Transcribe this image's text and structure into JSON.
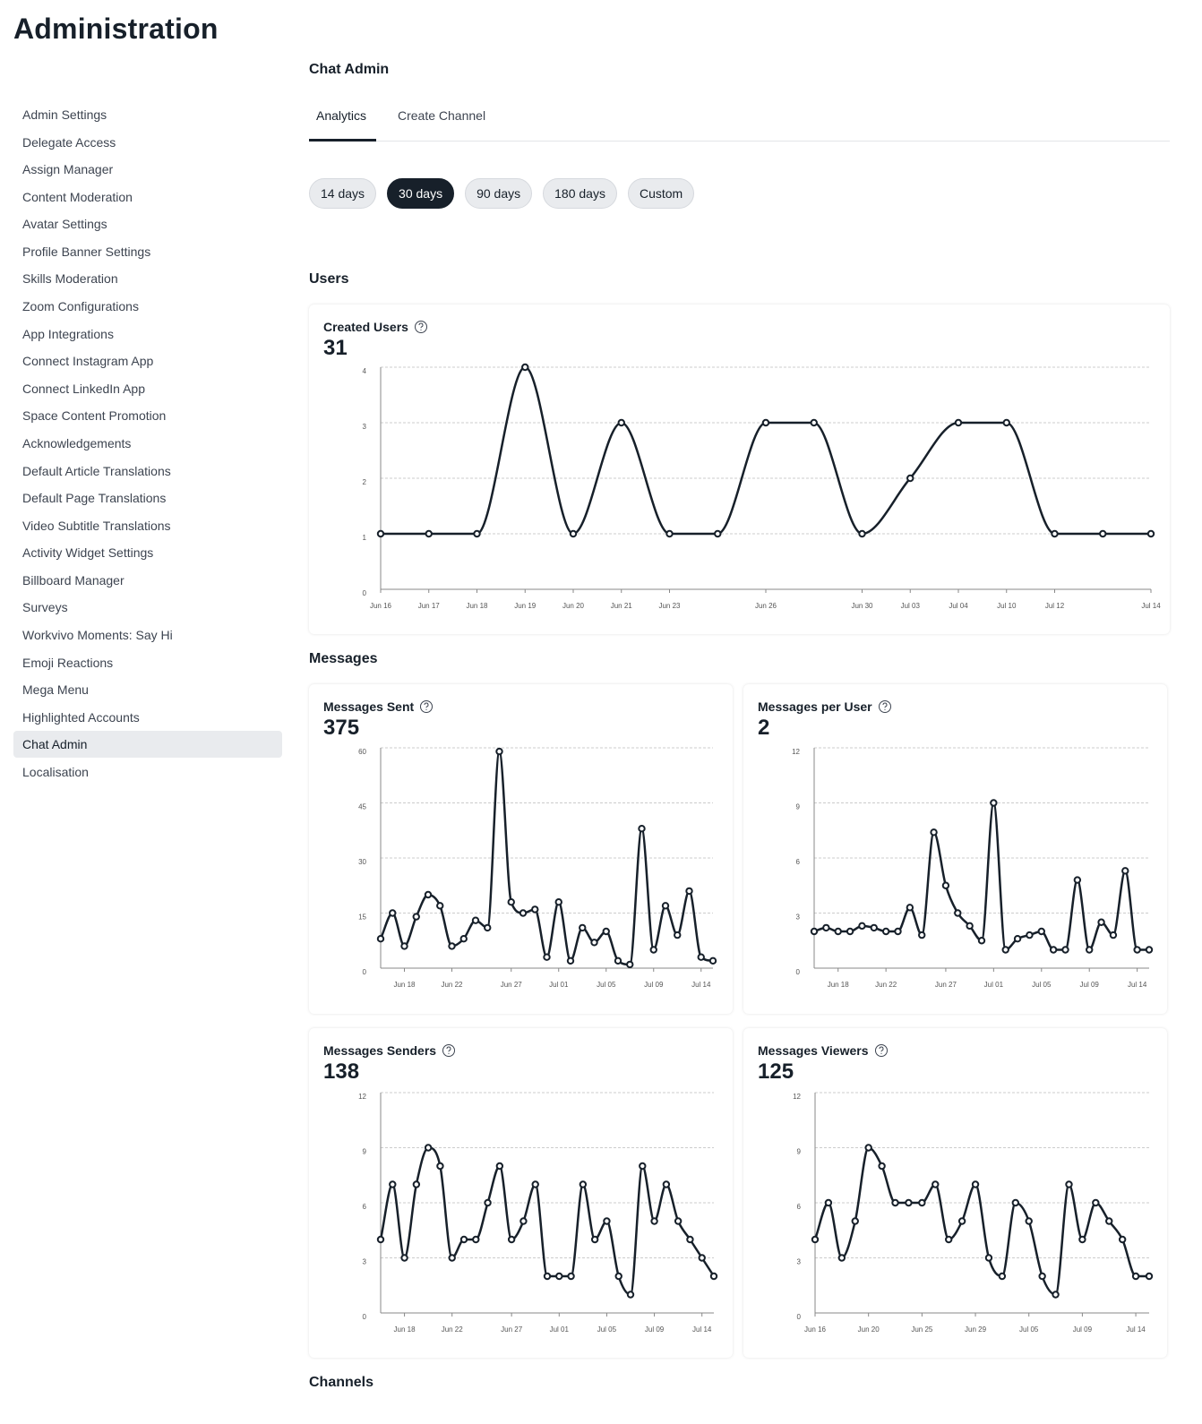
{
  "header": {
    "title": "Administration"
  },
  "sidebar": {
    "items": [
      "Admin Settings",
      "Delegate Access",
      "Assign Manager",
      "Content Moderation",
      "Avatar Settings",
      "Profile Banner Settings",
      "Skills Moderation",
      "Zoom Configurations",
      "App Integrations",
      "Connect Instagram App",
      "Connect LinkedIn App",
      "Space Content Promotion",
      "Acknowledgements",
      "Default Article Translations",
      "Default Page Translations",
      "Video Subtitle Translations",
      "Activity Widget Settings",
      "Billboard Manager",
      "Surveys",
      "Workvivo Moments: Say Hi",
      "Emoji Reactions",
      "Mega Menu",
      "Highlighted Accounts",
      "Chat Admin",
      "Localisation"
    ],
    "active": 23
  },
  "page": {
    "title": "Chat Admin",
    "tabs": [
      "Analytics",
      "Create Channel"
    ],
    "active_tab": 0,
    "ranges": [
      "14 days",
      "30 days",
      "90 days",
      "180 days",
      "Custom"
    ],
    "active_range": 1
  },
  "sections": {
    "users": "Users",
    "messages": "Messages",
    "channels": "Channels"
  },
  "chart_data": [
    {
      "type": "line",
      "title": "Created Users",
      "total": 31,
      "color": "#17202a",
      "grid": true,
      "categories": [
        "Jun 16",
        "Jun 17",
        "Jun 18",
        "Jun 19",
        "Jun 20",
        "Jun 21",
        "Jun 23",
        null,
        "Jun 26",
        null,
        "Jun 30",
        "Jul 03",
        "Jul 04",
        "Jul 10",
        "Jul 12",
        null,
        "Jul 14"
      ],
      "values": [
        1,
        1,
        1,
        4,
        1,
        3,
        1,
        1,
        3,
        3,
        1,
        2,
        3,
        3,
        1,
        1,
        1
      ],
      "ylim": [
        0,
        4
      ],
      "yticks": [
        0,
        1,
        2,
        3,
        4
      ]
    },
    {
      "type": "line",
      "title": "Messages Sent",
      "total": 375,
      "color": "#17202a",
      "grid": true,
      "categories": [
        null,
        null,
        "Jun 18",
        null,
        null,
        null,
        "Jun 22",
        null,
        null,
        null,
        null,
        "Jun 27",
        null,
        null,
        null,
        "Jul 01",
        null,
        null,
        null,
        "Jul 05",
        null,
        null,
        null,
        "Jul 09",
        null,
        null,
        null,
        "Jul 14",
        null
      ],
      "values": [
        8,
        15,
        6,
        14,
        20,
        17,
        6,
        8,
        13,
        11,
        59,
        18,
        15,
        16,
        3,
        18,
        2,
        11,
        7,
        10,
        2,
        1,
        38,
        5,
        17,
        9,
        21,
        3,
        2
      ],
      "ylim": [
        0,
        60
      ],
      "yticks": [
        0,
        15,
        30,
        45,
        60
      ]
    },
    {
      "type": "line",
      "title": "Messages per User",
      "total": 2,
      "color": "#17202a",
      "grid": true,
      "categories": [
        null,
        null,
        "Jun 18",
        null,
        null,
        null,
        "Jun 22",
        null,
        null,
        null,
        null,
        "Jun 27",
        null,
        null,
        null,
        "Jul 01",
        null,
        null,
        null,
        "Jul 05",
        null,
        null,
        null,
        "Jul 09",
        null,
        null,
        null,
        "Jul 14",
        null
      ],
      "values": [
        2,
        2.2,
        2,
        2,
        2.3,
        2.2,
        2,
        2,
        3.3,
        1.8,
        7.4,
        4.5,
        3,
        2.3,
        1.5,
        9,
        1,
        1.6,
        1.8,
        2,
        1,
        1,
        4.8,
        1,
        2.5,
        1.8,
        5.3,
        1,
        1
      ],
      "ylim": [
        0,
        12
      ],
      "yticks": [
        0,
        3,
        6,
        9,
        12
      ]
    },
    {
      "type": "line",
      "title": "Messages Senders",
      "total": 138,
      "color": "#17202a",
      "grid": true,
      "categories": [
        null,
        null,
        "Jun 18",
        null,
        null,
        null,
        "Jun 22",
        null,
        null,
        null,
        null,
        "Jun 27",
        null,
        null,
        null,
        "Jul 01",
        null,
        null,
        null,
        "Jul 05",
        null,
        null,
        null,
        "Jul 09",
        null,
        null,
        null,
        "Jul 14",
        null
      ],
      "values": [
        4,
        7,
        3,
        7,
        9,
        8,
        3,
        4,
        4,
        6,
        8,
        4,
        5,
        7,
        2,
        2,
        2,
        7,
        4,
        5,
        2,
        1,
        8,
        5,
        7,
        5,
        4,
        3,
        2
      ],
      "ylim": [
        0,
        12
      ],
      "yticks": [
        0,
        3,
        6,
        9,
        12
      ]
    },
    {
      "type": "line",
      "title": "Messages Viewers",
      "total": 125,
      "color": "#17202a",
      "grid": true,
      "categories": [
        "Jun 16",
        null,
        null,
        null,
        "Jun 20",
        null,
        null,
        null,
        "Jun 25",
        null,
        null,
        null,
        "Jun 29",
        null,
        null,
        null,
        "Jul 05",
        null,
        null,
        null,
        "Jul 09",
        null,
        null,
        null,
        "Jul 14",
        null
      ],
      "values": [
        4,
        6,
        3,
        5,
        9,
        8,
        6,
        6,
        6,
        7,
        4,
        5,
        7,
        3,
        2,
        6,
        5,
        2,
        1,
        7,
        4,
        6,
        5,
        4,
        2,
        2
      ],
      "ylim": [
        0,
        12
      ],
      "yticks": [
        0,
        3,
        6,
        9,
        12
      ]
    }
  ]
}
